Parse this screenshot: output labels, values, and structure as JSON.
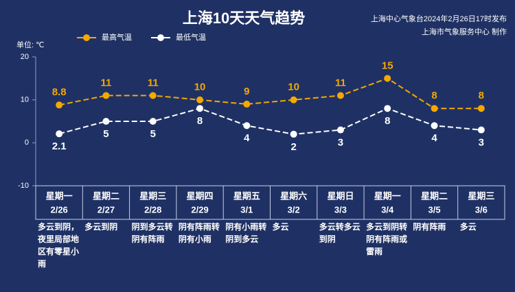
{
  "chart_data": {
    "type": "line",
    "title": "上海10天天气趋势",
    "source": [
      "上海中心气象台2024年2月26日17时发布",
      "上海市气象服务中心 制作"
    ],
    "y_label": "单位: ℃",
    "categories": [
      "星期一",
      "星期二",
      "星期三",
      "星期四",
      "星期五",
      "星期六",
      "星期日",
      "星期一",
      "星期二",
      "星期三"
    ],
    "dates": [
      "2/26",
      "2/27",
      "2/28",
      "2/29",
      "3/1",
      "3/2",
      "3/3",
      "3/4",
      "3/5",
      "3/6"
    ],
    "weather": [
      "多云到阴，夜里局部地区有零星小雨",
      "多云到阴",
      "阴到多云转阴有阵雨",
      "阴有阵雨转阴有小雨",
      "阴有小雨转阴到多云",
      "多云",
      "多云转多云到阴",
      "多云到阴转阴有阵雨或雷雨",
      "阴有阵雨",
      "多云"
    ],
    "series": [
      {
        "name": "最高气温",
        "color": "#f5a800",
        "values": [
          8.8,
          11,
          11,
          10,
          9,
          10,
          11,
          15,
          8,
          8
        ]
      },
      {
        "name": "最低气温",
        "color": "#ffffff",
        "values": [
          2.1,
          5,
          5,
          8,
          4,
          2,
          3,
          8,
          4,
          3
        ]
      }
    ],
    "ylim": [
      -10,
      20
    ],
    "yticks": [
      -10,
      0,
      10,
      20
    ],
    "grid": false
  }
}
